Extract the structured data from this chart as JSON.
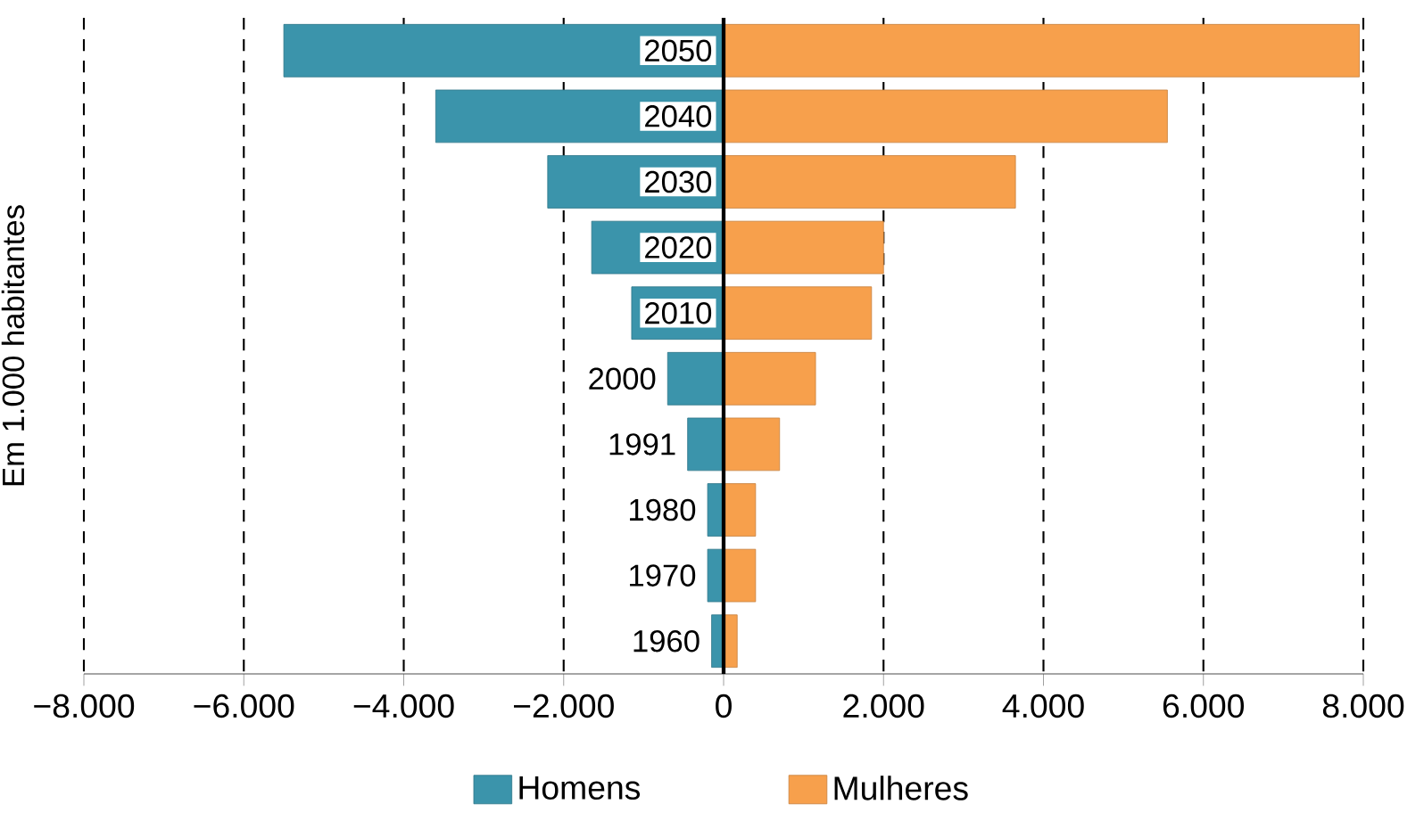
{
  "chart_data": {
    "type": "bar",
    "orientation": "horizontal",
    "ylabel": "Em 1.000 habitantes",
    "categories": [
      "2050",
      "2040",
      "2030",
      "2020",
      "2010",
      "2000",
      "1991",
      "1980",
      "1970",
      "1960"
    ],
    "series": [
      {
        "name": "Homens",
        "color": "#3b94ab",
        "values": [
          -5500,
          -3600,
          -2200,
          -1650,
          -1150,
          -700,
          -450,
          -200,
          -200,
          -150
        ]
      },
      {
        "name": "Mulheres",
        "color": "#f7a04c",
        "values": [
          7950,
          5550,
          3650,
          2000,
          1850,
          1150,
          700,
          400,
          400,
          170
        ]
      }
    ],
    "xlim": [
      -8000,
      8000
    ],
    "xticks": [
      {
        "value": -8000,
        "label": "−8.000"
      },
      {
        "value": -6000,
        "label": "−6.000"
      },
      {
        "value": -4000,
        "label": "−4.000"
      },
      {
        "value": -2000,
        "label": "−2.000"
      },
      0,
      {
        "value": 2000,
        "label": "2.000"
      },
      {
        "value": 4000,
        "label": "4.000"
      },
      {
        "value": 6000,
        "label": "6.000"
      },
      {
        "value": 8000,
        "label": "8.000"
      }
    ],
    "stacked": true,
    "grid": "x",
    "legend": "bottom"
  }
}
